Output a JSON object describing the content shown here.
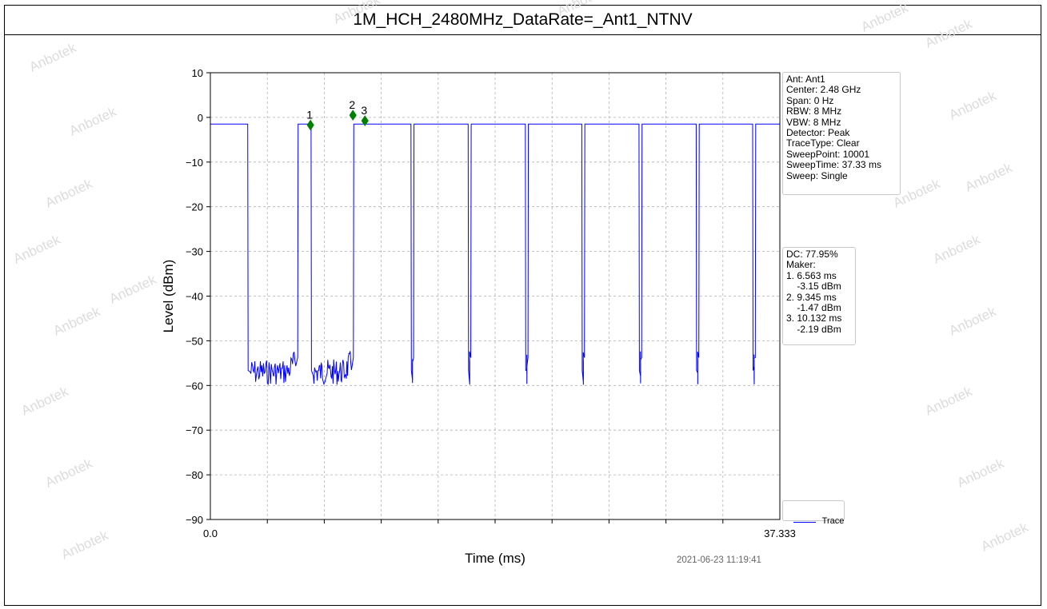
{
  "title": "1M_HCH_2480MHz_DataRate=_Ant1_NTNV",
  "settings": [
    "Ant: Ant1",
    "Center: 2.48 GHz",
    "Span: 0 Hz",
    "RBW: 8 MHz",
    "VBW: 8 MHz",
    "Detector: Peak",
    "TraceType: Clear",
    "SweepPoint: 10001",
    "SweepTime: 37.33 ms",
    "Sweep: Single"
  ],
  "markers_info": [
    "DC: 77.95%",
    "Maker:",
    "1. 6.563 ms",
    "    -3.15 dBm",
    "2. 9.345 ms",
    "    -1.47 dBm",
    "3. 10.132 ms",
    "    -2.19 dBm"
  ],
  "timestamp": "2021-06-23 11:19:41",
  "watermark": "Anbotek",
  "colors": {
    "trace": "#0000ff",
    "marker": "#008000",
    "grid": "#b0b0b0"
  },
  "chart_data": {
    "type": "line",
    "title": "1M_HCH_2480MHz_DataRate=_Ant1_NTNV",
    "xlabel": "Time (ms)",
    "ylabel": "Level (dBm)",
    "xlim": [
      0.0,
      37.333
    ],
    "ylim": [
      -90,
      10
    ],
    "x_tick_labels": [
      "0.0",
      "37.333"
    ],
    "y_ticks": [
      10,
      0,
      -10,
      -20,
      -30,
      -40,
      -50,
      -60,
      -70,
      -80,
      -90
    ],
    "grid": true,
    "legend": {
      "position": "lower-right",
      "entries": [
        "Trace"
      ]
    },
    "series": [
      {
        "name": "Trace",
        "high_level": -1.5,
        "low_level": -57,
        "on_intervals_ms": [
          [
            0.0,
            2.45
          ],
          [
            5.75,
            6.6
          ],
          [
            9.4,
            13.15
          ],
          [
            13.35,
            16.9
          ],
          [
            17.1,
            20.65
          ],
          [
            20.85,
            24.35
          ],
          [
            24.55,
            28.1
          ],
          [
            28.3,
            31.85
          ],
          [
            32.05,
            35.55
          ],
          [
            35.75,
            37.333
          ]
        ]
      }
    ],
    "markers": [
      {
        "label": "1",
        "x": 6.563,
        "y": -3.15
      },
      {
        "label": "2",
        "x": 9.345,
        "y": -1.47
      },
      {
        "label": "3",
        "x": 10.132,
        "y": -2.19
      }
    ]
  }
}
